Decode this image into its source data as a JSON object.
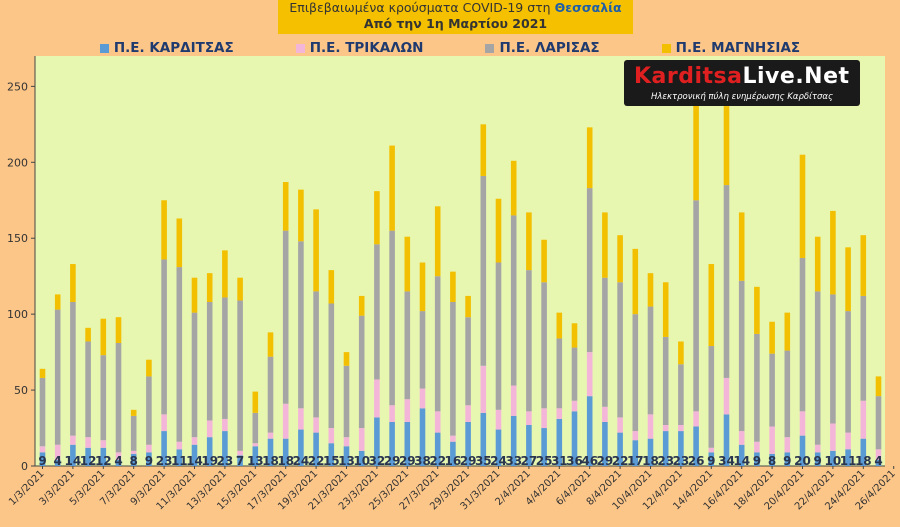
{
  "chart_data": {
    "type": "bar",
    "stacked": true,
    "title": "Επιβεβαιωμένα κρούσματα COVID-19 στη Θεσσαλία",
    "title_region": "Θεσσαλία",
    "subtitle": "Από την 1η Μαρτίου 2021",
    "ylim": [
      0,
      270
    ],
    "yticks": [
      0,
      50,
      100,
      150,
      200,
      250
    ],
    "legend_position": "top",
    "grid": false,
    "categories": [
      "1/3/2021",
      "2/3/2021",
      "3/3/2021",
      "4/3/2021",
      "5/3/2021",
      "6/3/2021",
      "7/3/2021",
      "8/3/2021",
      "9/3/2021",
      "10/3/2021",
      "11/3/2021",
      "12/3/2021",
      "13/3/2021",
      "14/3/2021",
      "15/3/2021",
      "16/3/2021",
      "17/3/2021",
      "18/3/2021",
      "19/3/2021",
      "20/3/2021",
      "21/3/2021",
      "22/3/2021",
      "23/3/2021",
      "24/3/2021",
      "25/3/2021",
      "26/3/2021",
      "27/3/2021",
      "28/3/2021",
      "29/3/2021",
      "30/3/2021",
      "31/3/2021",
      "1/4/2021",
      "2/4/2021",
      "3/4/2021",
      "4/4/2021",
      "5/4/2021",
      "6/4/2021",
      "7/4/2021",
      "8/4/2021",
      "9/4/2021",
      "10/4/2021",
      "11/4/2021",
      "12/4/2021",
      "13/4/2021",
      "14/4/2021",
      "15/4/2021",
      "16/4/2021",
      "17/4/2021",
      "18/4/2021",
      "19/4/2021",
      "20/4/2021",
      "21/4/2021",
      "22/4/2021",
      "23/4/2021",
      "24/4/2021",
      "25/4/2021",
      "26/4/2021"
    ],
    "series": [
      {
        "name": "Π.Ε. ΚΑΡΔΙΤΣΑΣ",
        "color": "#5b9bd5",
        "values": [
          9,
          4,
          14,
          12,
          12,
          4,
          8,
          9,
          23,
          11,
          14,
          19,
          23,
          7,
          13,
          18,
          18,
          24,
          22,
          15,
          13,
          10,
          32,
          29,
          29,
          38,
          22,
          16,
          29,
          35,
          24,
          33,
          27,
          25,
          31,
          36,
          46,
          29,
          22,
          17,
          18,
          23,
          23,
          26,
          9,
          34,
          14,
          9,
          8,
          9,
          20,
          9,
          10,
          11,
          18,
          4,
          0
        ]
      },
      {
        "name": "Π.Ε. ΤΡΙΚΑΛΩΝ",
        "color": "#f4b6d8",
        "values": [
          4,
          10,
          6,
          7,
          5,
          5,
          2,
          5,
          11,
          5,
          5,
          11,
          8,
          3,
          2,
          4,
          23,
          14,
          10,
          10,
          6,
          15,
          25,
          11,
          15,
          13,
          14,
          4,
          11,
          31,
          13,
          20,
          9,
          13,
          7,
          7,
          29,
          10,
          10,
          6,
          16,
          4,
          4,
          10,
          3,
          24,
          9,
          7,
          18,
          10,
          16,
          5,
          18,
          11,
          25,
          7,
          0
        ]
      },
      {
        "name": "Π.Ε. ΛΑΡΙΣΑΣ",
        "color": "#a5a5a5",
        "values": [
          45,
          89,
          88,
          63,
          56,
          72,
          23,
          45,
          102,
          115,
          82,
          78,
          80,
          99,
          20,
          50,
          114,
          110,
          83,
          82,
          47,
          74,
          89,
          115,
          71,
          51,
          89,
          88,
          58,
          125,
          97,
          112,
          93,
          83,
          46,
          35,
          108,
          85,
          89,
          77,
          71,
          58,
          40,
          139,
          67,
          127,
          99,
          71,
          48,
          57,
          101,
          101,
          85,
          80,
          69,
          35,
          0
        ]
      },
      {
        "name": "Π.Ε. ΜΑΓΝΗΣΙΑΣ",
        "color": "#f2c000",
        "values": [
          6,
          10,
          25,
          9,
          24,
          17,
          4,
          11,
          39,
          32,
          23,
          19,
          31,
          15,
          14,
          16,
          32,
          34,
          54,
          22,
          9,
          13,
          35,
          56,
          36,
          32,
          46,
          20,
          14,
          34,
          42,
          36,
          38,
          28,
          17,
          16,
          40,
          43,
          31,
          43,
          22,
          36,
          15,
          66,
          54,
          52,
          45,
          31,
          21,
          25,
          68,
          36,
          55,
          42,
          40,
          13,
          0
        ]
      }
    ],
    "bar_labels": [
      9,
      4,
      14,
      12,
      12,
      4,
      8,
      9,
      23,
      11,
      14,
      19,
      23,
      7,
      13,
      18,
      18,
      24,
      22,
      15,
      13,
      10,
      32,
      29,
      29,
      38,
      22,
      16,
      29,
      35,
      24,
      33,
      27,
      25,
      31,
      36,
      46,
      29,
      22,
      17,
      18,
      23,
      23,
      26,
      9,
      34,
      14,
      9,
      8,
      9,
      20,
      9,
      10,
      11,
      18,
      4,
      0
    ],
    "xtick_labels": [
      "1/3/2021",
      "3/3/2021",
      "5/3/2021",
      "7/3/2021",
      "9/3/2021",
      "11/3/2021",
      "13/3/2021",
      "15/3/2021",
      "17/3/2021",
      "19/3/2021",
      "21/3/2021",
      "23/3/2021",
      "25/3/2021",
      "27/3/2021",
      "29/3/2021",
      "31/3/2021",
      "2/4/2021",
      "4/4/2021",
      "6/4/2021",
      "8/4/2021",
      "10/4/2021",
      "12/4/2021",
      "14/4/2021",
      "16/4/2021",
      "18/4/2021",
      "20/4/2021",
      "22/4/2021",
      "24/4/2021",
      "26/4/2021"
    ]
  },
  "legend": {
    "items": [
      {
        "label": "Π.Ε. ΚΑΡΔΙΤΣΑΣ",
        "color": "#5b9bd5"
      },
      {
        "label": "Π.Ε. ΤΡΙΚΑΛΩΝ",
        "color": "#f4b6d8"
      },
      {
        "label": "Π.Ε. ΛΑΡΙΣΑΣ",
        "color": "#a5a5a5"
      },
      {
        "label": "Π.Ε. ΜΑΓΝΗΣΙΑΣ",
        "color": "#f2c000"
      }
    ]
  },
  "logo": {
    "name_k": "Karditsa",
    "name_l": "Live.Net",
    "tagline": "Ηλεκτρονική πύλη ενημέρωσης Καρδίτσας"
  },
  "colors": {
    "page_bg": "#fcc689",
    "plot_bg": "#e8f7b0",
    "title_bg": "#f5c000",
    "label_color": "#2a3550"
  }
}
